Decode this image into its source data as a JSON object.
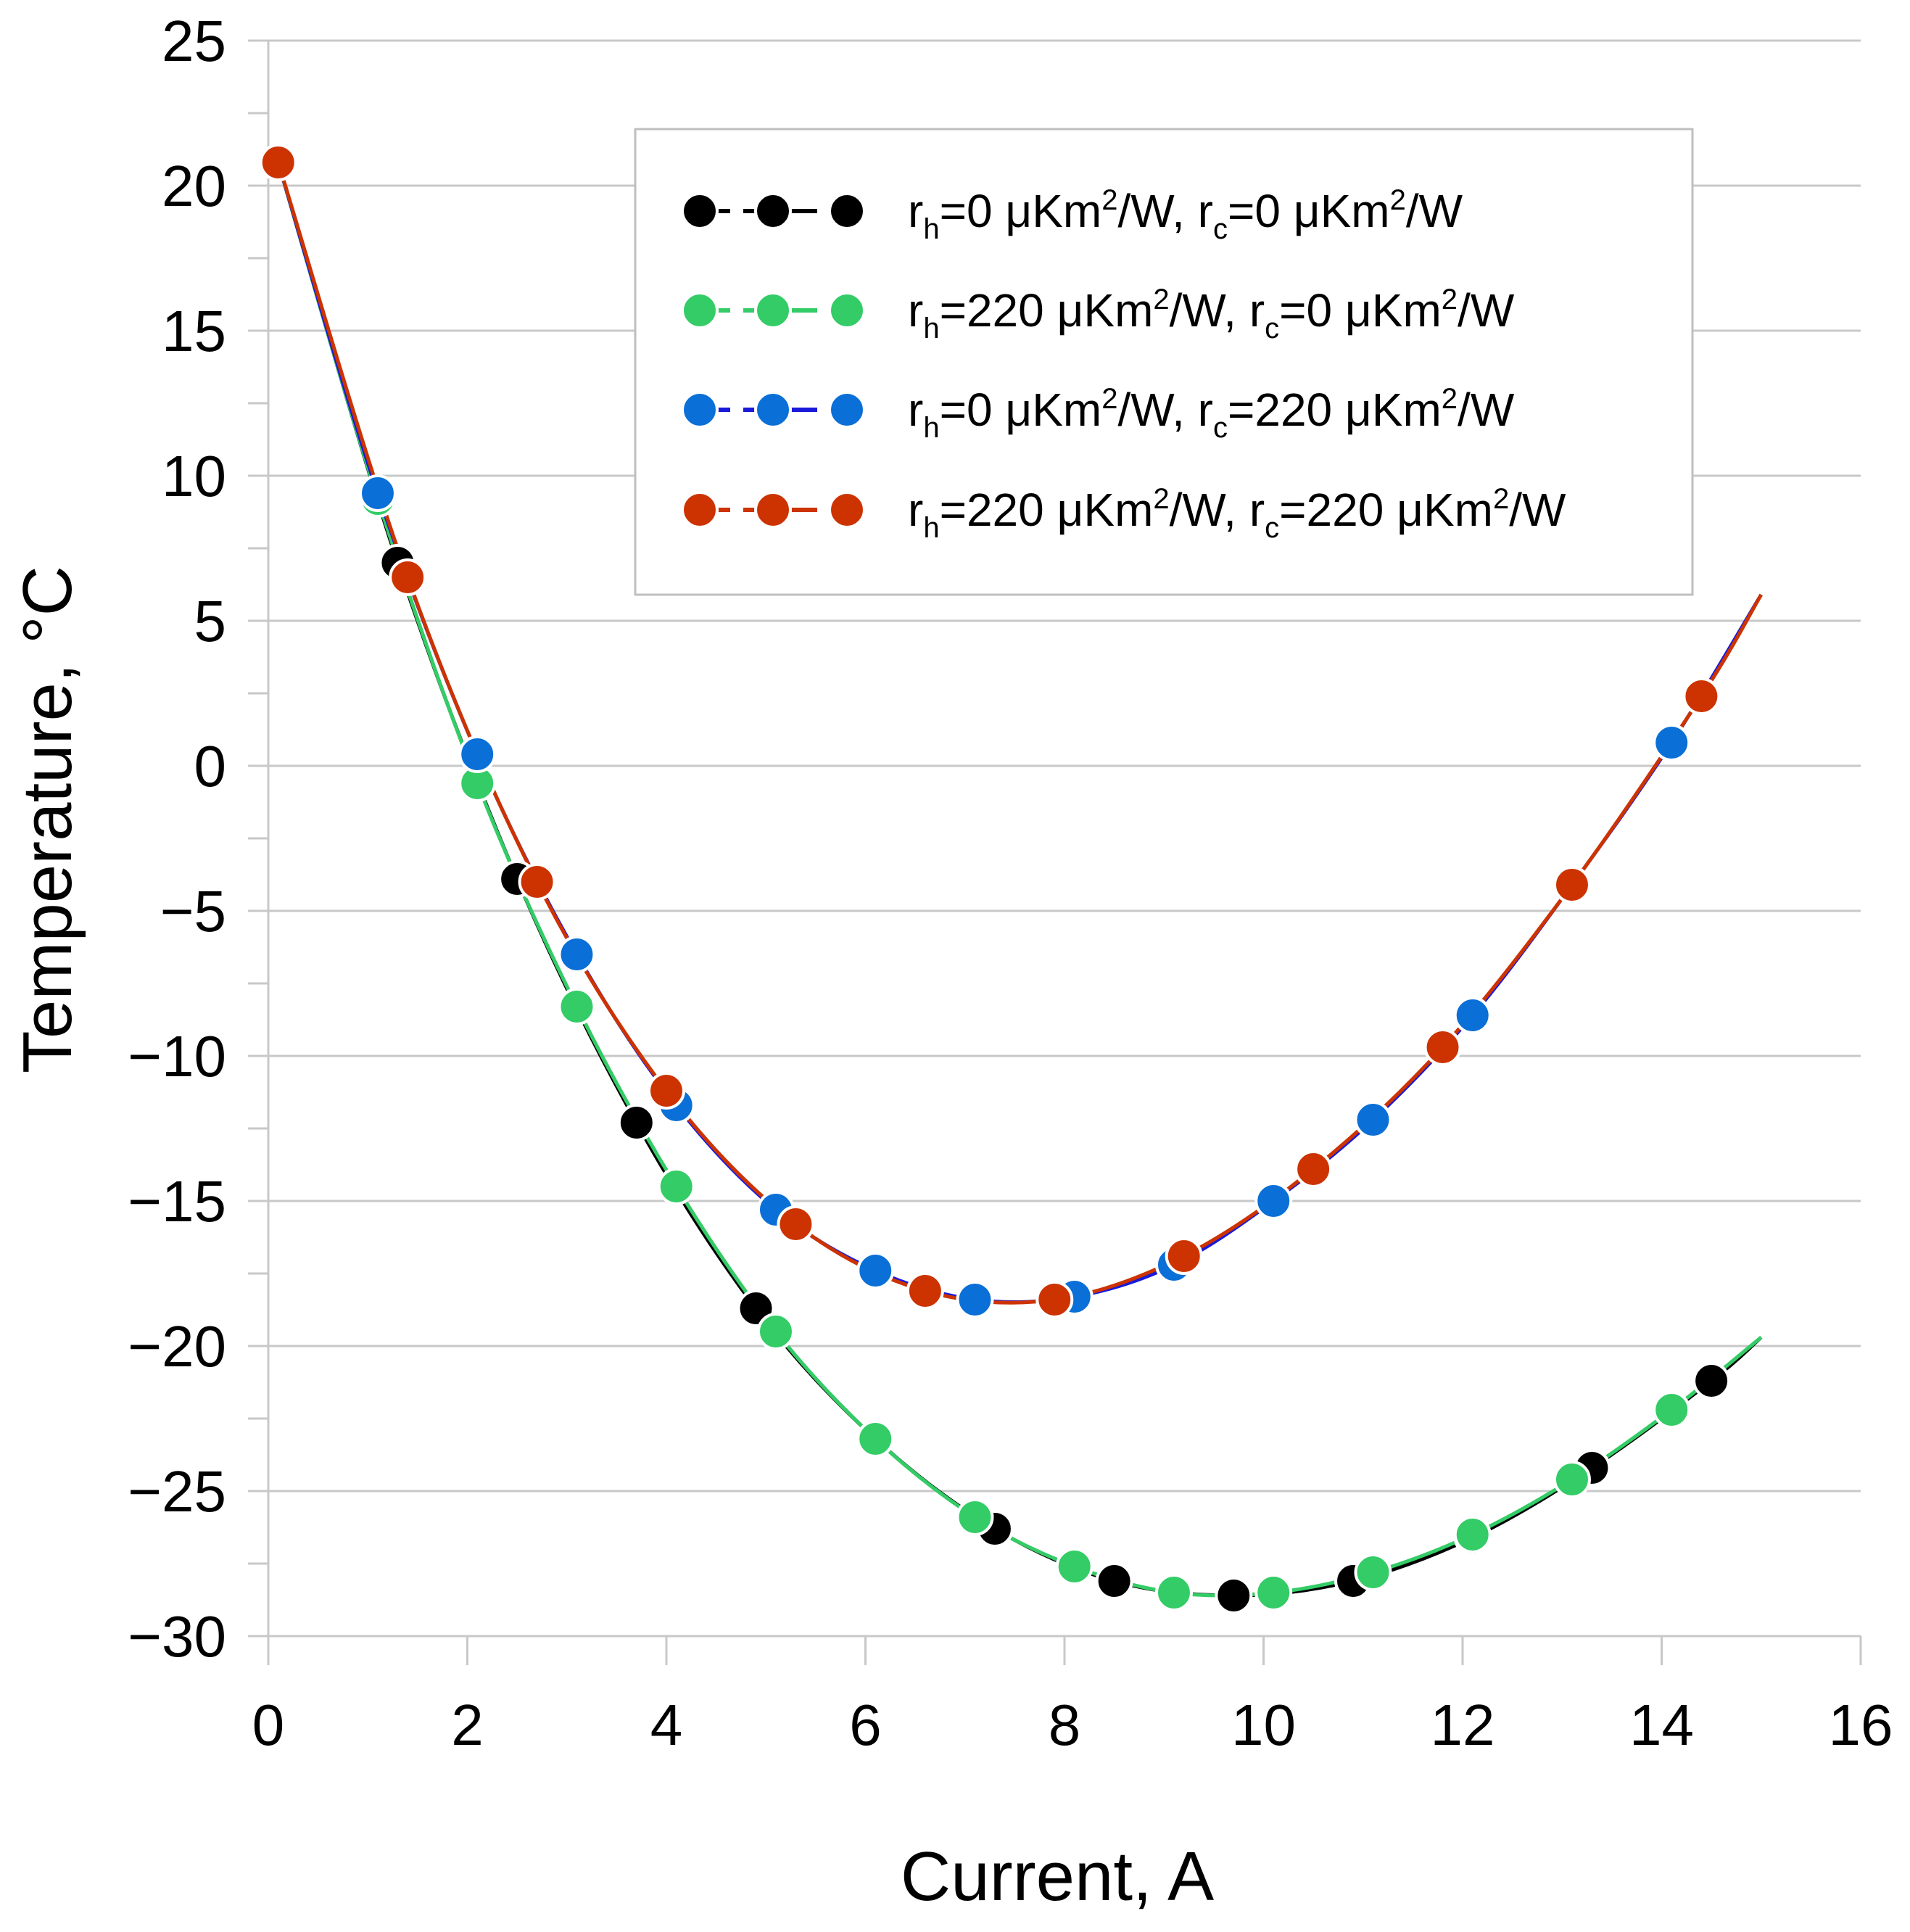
{
  "chart_data": {
    "type": "line",
    "title": "",
    "xlabel": "Current, A",
    "ylabel": "Temperature, °C",
    "xlim": [
      0,
      16
    ],
    "ylim": [
      -30,
      25
    ],
    "xticks": [
      0,
      2,
      4,
      6,
      8,
      10,
      12,
      14,
      16
    ],
    "yticks": [
      25,
      20,
      15,
      10,
      5,
      0,
      -5,
      -10,
      -15,
      -20,
      -25,
      -30
    ],
    "x_tick_labels": [
      "0",
      "2",
      "4",
      "6",
      "8",
      "10",
      "12",
      "14",
      "16"
    ],
    "y_tick_labels": [
      "25",
      "20",
      "15",
      "10",
      "5",
      "0",
      "−5",
      "−10",
      "−15",
      "−20",
      "−25",
      "−30"
    ],
    "grid": "horizontal",
    "legend_position": "top-right",
    "series": [
      {
        "name": "rh=0 μKm²/W, rc=0 μKm²/W",
        "legend": {
          "r1": "r",
          "s1": "h",
          "v1": "=0 μKm",
          "sup1": "2",
          "u1": "/W, ",
          "r2": "r",
          "s2": "c",
          "v2": "=0 μKm",
          "sup2": "2",
          "u2": "/W"
        },
        "color": "#000000",
        "line_color": "#000000",
        "x": [
          0.1,
          1.3,
          2.5,
          3.7,
          4.9,
          6.1,
          7.3,
          8.5,
          9.7,
          10.9,
          12.1,
          13.3,
          14.5
        ],
        "y": [
          20.8,
          7.0,
          -3.9,
          -12.3,
          -18.7,
          -23.2,
          -26.3,
          -28.1,
          -28.6,
          -28.1,
          -26.6,
          -24.2,
          -21.2
        ]
      },
      {
        "name": "rh=220 μKm²/W, rc=0 μKm²/W",
        "legend": {
          "r1": "r",
          "s1": "h",
          "v1": "=220 μKm",
          "sup1": "2",
          "u1": "/W, ",
          "r2": "r",
          "s2": "c",
          "v2": "=0 μKm",
          "sup2": "2",
          "u2": "/W"
        },
        "color": "#33cc66",
        "line_color": "#33cc66",
        "x": [
          0.1,
          1.1,
          2.1,
          3.1,
          4.1,
          5.1,
          6.1,
          7.1,
          8.1,
          9.1,
          10.1,
          11.1,
          12.1,
          13.1,
          14.1
        ],
        "y": [
          20.8,
          9.2,
          -0.6,
          -8.3,
          -14.5,
          -19.5,
          -23.2,
          -25.9,
          -27.6,
          -28.5,
          -28.5,
          -27.8,
          -26.5,
          -24.6,
          -22.2
        ]
      },
      {
        "name": "rh=0 μKm²/W, rc=220 μKm²/W",
        "legend": {
          "r1": "r",
          "s1": "h",
          "v1": "=0 μKm",
          "sup1": "2",
          "u1": "/W, ",
          "r2": "r",
          "s2": "c",
          "v2": "=220 μKm",
          "sup2": "2",
          "u2": "/W"
        },
        "color": "#0a6fd6",
        "line_color": "#1a1adb",
        "x": [
          0.1,
          1.1,
          2.1,
          3.1,
          4.1,
          5.1,
          6.1,
          7.1,
          8.1,
          9.1,
          10.1,
          11.1,
          12.1,
          13.1,
          14.1
        ],
        "y": [
          20.8,
          9.4,
          0.4,
          -6.5,
          -11.7,
          -15.3,
          -17.4,
          -18.4,
          -18.3,
          -17.2,
          -15.0,
          -12.2,
          -8.6,
          -4.1,
          0.8
        ]
      },
      {
        "name": "rh=220 μKm²/W, rc=220 μKm²/W",
        "legend": {
          "r1": "r",
          "s1": "h",
          "v1": "=220 μKm",
          "sup1": "2",
          "u1": "/W, ",
          "r2": "r",
          "s2": "c",
          "v2": "=220 μKm",
          "sup2": "2",
          "u2": "/W"
        },
        "color": "#cc3300",
        "line_color": "#cc3300",
        "x": [
          0.1,
          1.4,
          2.7,
          4.0,
          5.3,
          6.6,
          7.9,
          9.2,
          10.5,
          11.8,
          13.1,
          14.4
        ],
        "y": [
          20.8,
          6.5,
          -4.0,
          -11.2,
          -15.8,
          -18.1,
          -18.4,
          -16.9,
          -13.9,
          -9.7,
          -4.1,
          2.4
        ]
      }
    ],
    "curves": [
      {
        "series": "rh=0, rc=0",
        "color": "#000000",
        "width": 5,
        "x": [
          0.1,
          1.3,
          2.5,
          3.7,
          4.9,
          6.1,
          7.3,
          8.5,
          9.7,
          10.9,
          12.1,
          13.3,
          14.5,
          15.0
        ],
        "y": [
          20.8,
          7.0,
          -3.9,
          -12.3,
          -18.7,
          -23.2,
          -26.3,
          -28.1,
          -28.6,
          -28.1,
          -26.6,
          -24.2,
          -21.2,
          -19.7
        ]
      },
      {
        "series": "rh=220, rc=0",
        "color": "#33cc66",
        "width": 5,
        "x": [
          0.1,
          1.1,
          2.1,
          3.1,
          4.1,
          5.1,
          6.1,
          7.1,
          8.1,
          9.1,
          10.1,
          11.1,
          12.1,
          13.1,
          14.1,
          15.0
        ],
        "y": [
          20.8,
          9.2,
          -0.6,
          -8.3,
          -14.5,
          -19.5,
          -23.2,
          -25.9,
          -27.6,
          -28.5,
          -28.5,
          -27.8,
          -26.5,
          -24.6,
          -22.2,
          -19.7
        ]
      },
      {
        "series": "rh=0, rc=220",
        "color": "#1a1adb",
        "width": 5,
        "x": [
          0.1,
          1.1,
          2.1,
          3.1,
          4.1,
          5.1,
          6.1,
          7.1,
          8.1,
          9.1,
          10.1,
          11.1,
          12.1,
          13.1,
          14.1,
          15.0
        ],
        "y": [
          20.8,
          9.4,
          0.4,
          -6.5,
          -11.7,
          -15.3,
          -17.4,
          -18.4,
          -18.3,
          -17.2,
          -15.0,
          -12.2,
          -8.6,
          -4.1,
          0.8,
          5.9
        ]
      },
      {
        "series": "rh=220, rc=220",
        "color": "#cc3300",
        "width": 5,
        "x": [
          0.1,
          1.4,
          2.7,
          4.0,
          5.3,
          6.6,
          7.9,
          9.2,
          10.5,
          11.8,
          13.1,
          14.4,
          15.0
        ],
        "y": [
          20.8,
          6.5,
          -4.0,
          -11.2,
          -15.8,
          -18.1,
          -18.4,
          -16.9,
          -13.9,
          -9.7,
          -4.1,
          2.4,
          5.9
        ]
      }
    ]
  }
}
